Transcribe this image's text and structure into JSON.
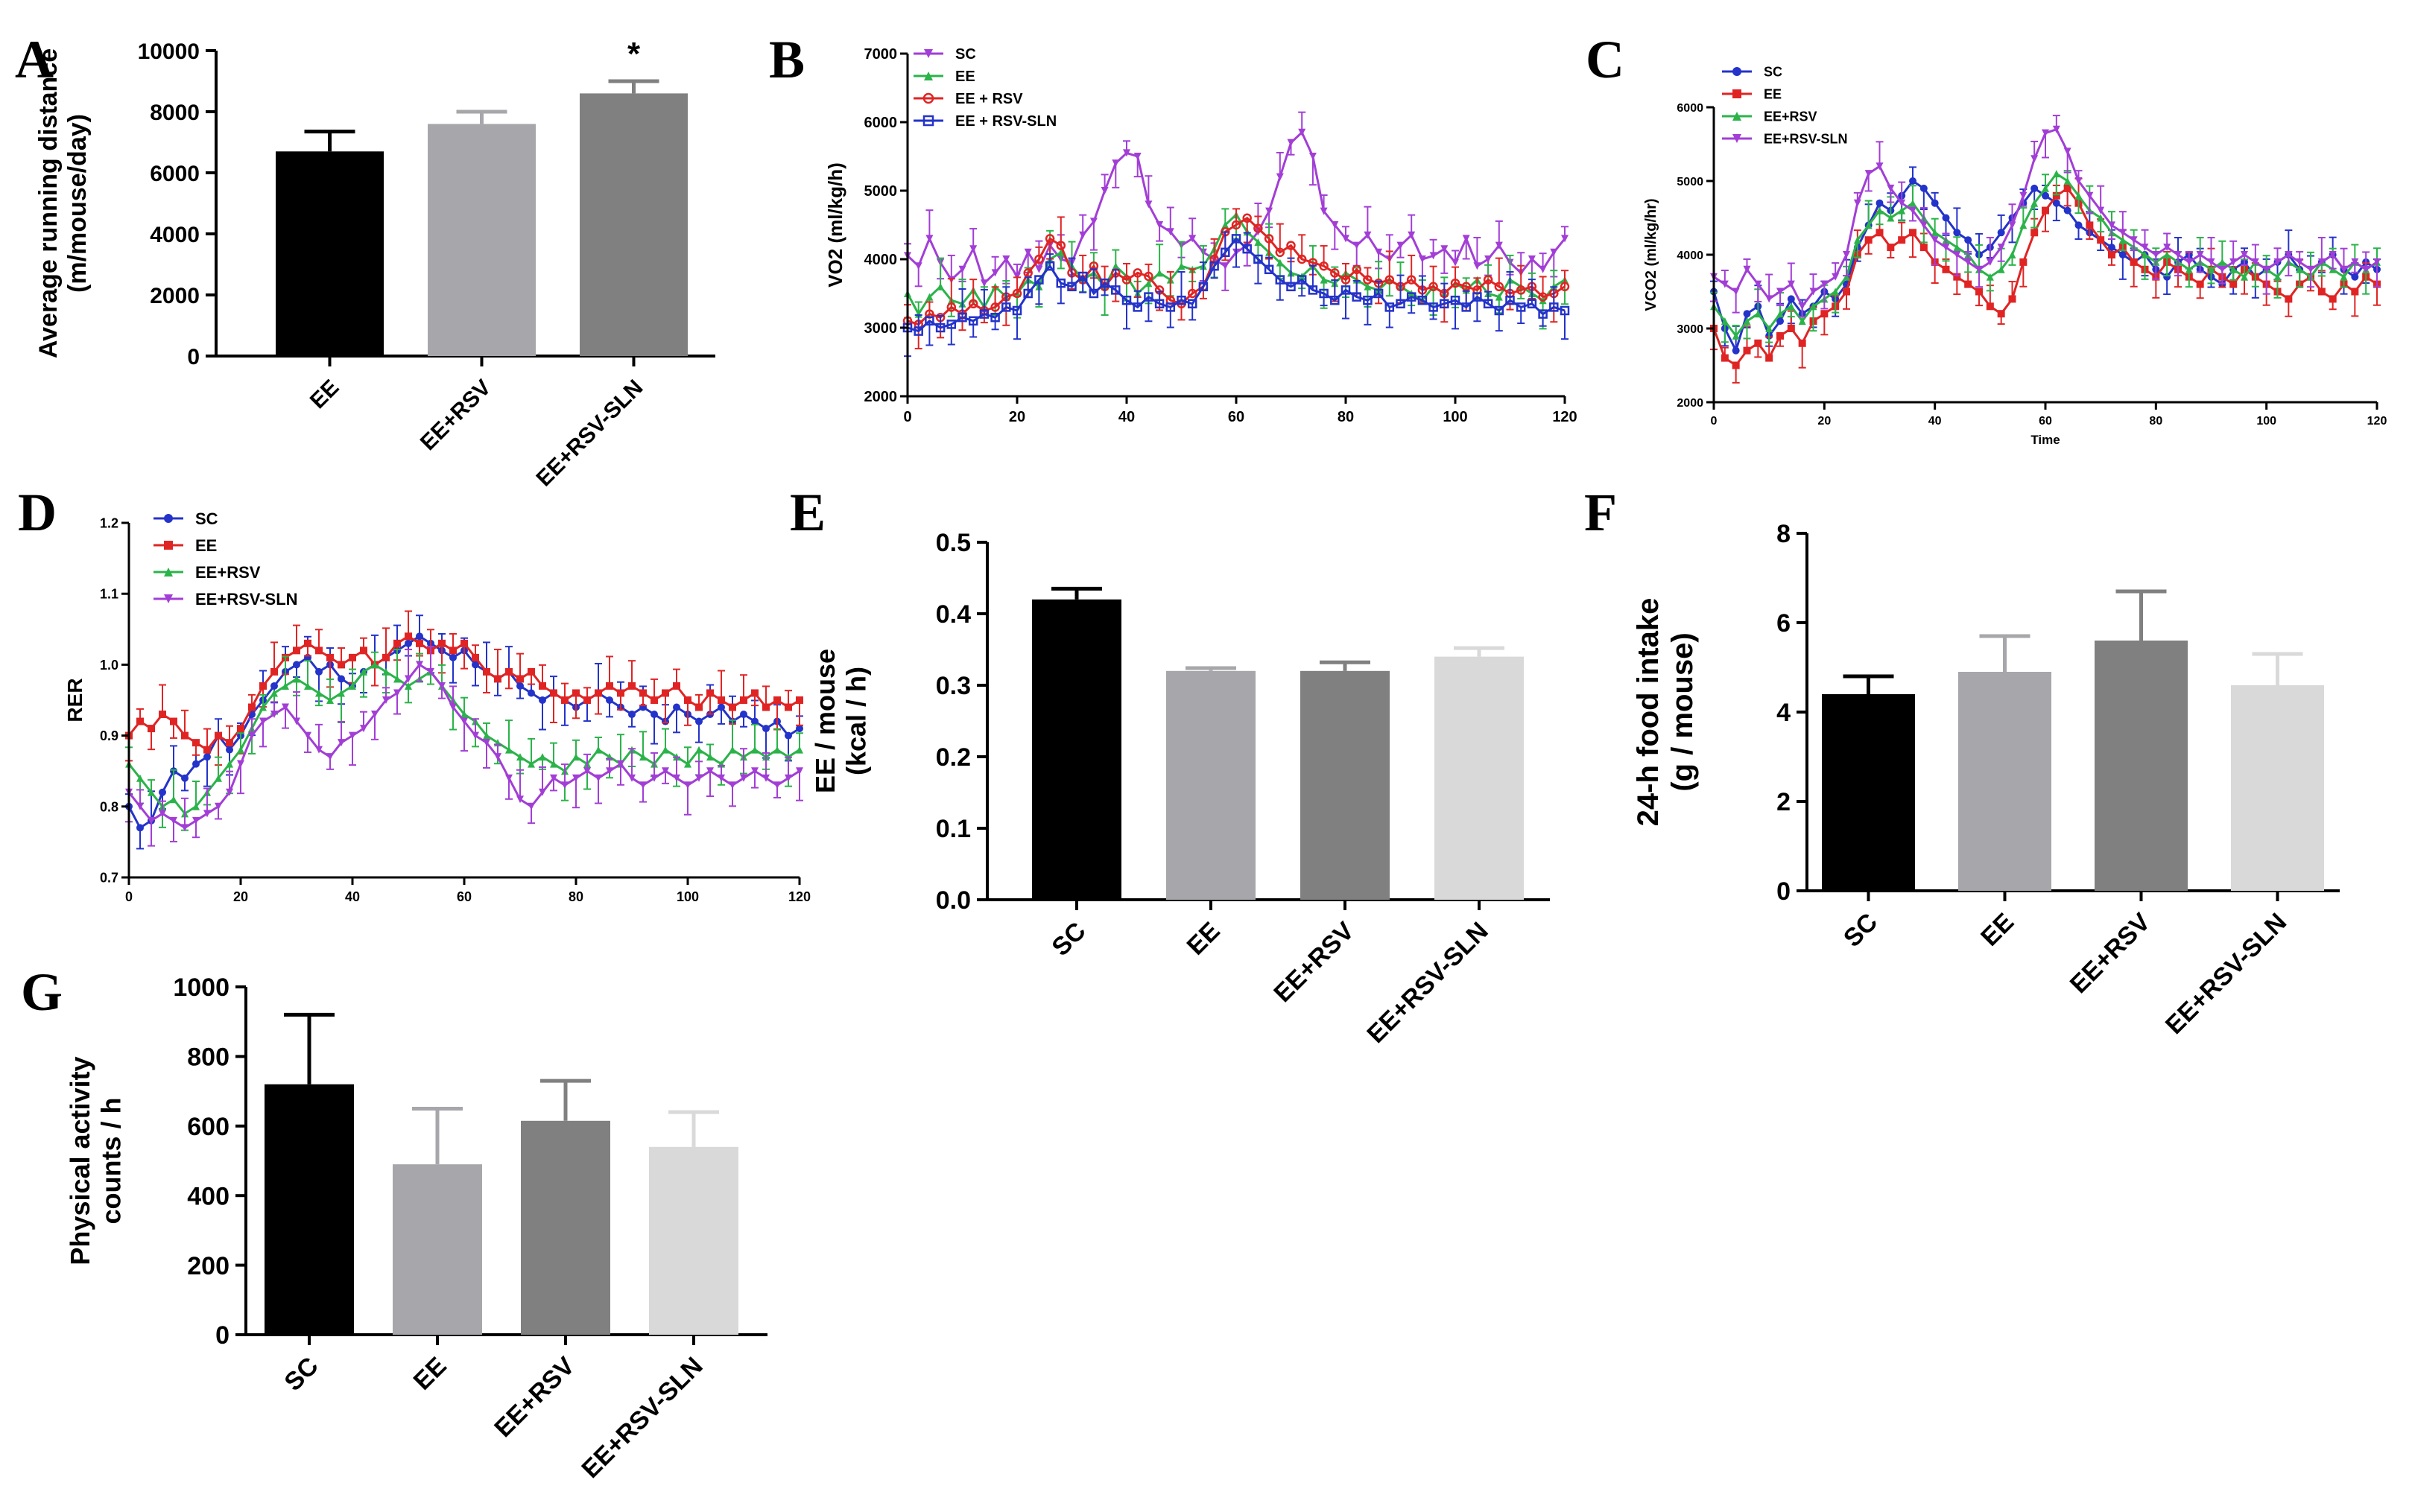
{
  "chart_data": [
    {
      "panel": "A",
      "type": "bar",
      "categories": [
        "EE",
        "EE+RSV",
        "EE+RSV-SLN"
      ],
      "values": [
        6700,
        7600,
        8600
      ],
      "errors": [
        650,
        400,
        400
      ],
      "colors": [
        "#000000",
        "#a7a7ab",
        "#808080"
      ],
      "ylabel": [
        "Average running distance",
        "(m/mouse/day)"
      ],
      "ylim": [
        0,
        10000
      ],
      "yticks": [
        "0",
        "2000",
        "4000",
        "6000",
        "8000",
        "10000"
      ],
      "significance": [
        "",
        "",
        "*"
      ]
    },
    {
      "panel": "B",
      "type": "line",
      "ylabel": "VO2 (ml/kg/h)",
      "xlim": [
        0,
        120
      ],
      "ylim": [
        2000,
        7000
      ],
      "xticks": [
        "0",
        "20",
        "40",
        "60",
        "80",
        "100",
        "120"
      ],
      "yticks": [
        "2000",
        "3000",
        "4000",
        "5000",
        "6000",
        "7000"
      ],
      "series": [
        {
          "name": "SC",
          "color": "#a23ed6",
          "marker": "triangle-down",
          "values": [
            4050,
            3900,
            4300,
            3950,
            3700,
            3850,
            4150,
            3650,
            3800,
            4000,
            3750,
            4100,
            3850,
            4200,
            4000,
            3950,
            4350,
            4550,
            5000,
            5400,
            5550,
            5500,
            4800,
            4500,
            4400,
            4200,
            4300,
            4100,
            4000,
            3900,
            4100,
            4200,
            4400,
            4700,
            5200,
            5700,
            5850,
            5500,
            4700,
            4500,
            4300,
            4200,
            4350,
            4100,
            4000,
            4200,
            4350,
            4000,
            4050,
            4150,
            3950,
            4300,
            3900,
            4000,
            4200,
            3950,
            3800,
            4000,
            3850,
            4100,
            4300
          ]
        },
        {
          "name": "EE",
          "color": "#2bb34a",
          "marker": "triangle-up",
          "values": [
            3500,
            3200,
            3450,
            3600,
            3400,
            3350,
            3550,
            3300,
            3600,
            3450,
            3500,
            3700,
            3600,
            4000,
            4100,
            3900,
            3700,
            3800,
            3600,
            3900,
            3750,
            3500,
            3650,
            3800,
            3700,
            3900,
            3850,
            3900,
            4150,
            4500,
            4650,
            4400,
            4250,
            4100,
            3950,
            3800,
            3750,
            3900,
            3700,
            3650,
            3800,
            3700,
            3600,
            3550,
            3700,
            3600,
            3500,
            3400,
            3600,
            3500,
            3650,
            3550,
            3700,
            3500,
            3450,
            3700,
            3600,
            3500,
            3400,
            3600,
            3700
          ]
        },
        {
          "name": "EE + RSV",
          "color": "#e02424",
          "marker": "circle-open",
          "values": [
            3100,
            3050,
            3200,
            3150,
            3300,
            3200,
            3350,
            3250,
            3300,
            3450,
            3500,
            3800,
            4000,
            4300,
            4200,
            3800,
            3700,
            3900,
            3600,
            3800,
            3700,
            3800,
            3750,
            3550,
            3400,
            3350,
            3500,
            3600,
            4000,
            4400,
            4500,
            4600,
            4450,
            4300,
            4100,
            4200,
            4000,
            3950,
            3900,
            3800,
            3700,
            3850,
            3700,
            3650,
            3700,
            3600,
            3700,
            3550,
            3600,
            3500,
            3650,
            3600,
            3550,
            3700,
            3600,
            3500,
            3550,
            3600,
            3450,
            3500,
            3600
          ]
        },
        {
          "name": "EE + RSV-SLN",
          "color": "#2433c9",
          "marker": "square-open",
          "values": [
            3000,
            2950,
            3100,
            3000,
            3050,
            3150,
            3100,
            3200,
            3150,
            3300,
            3250,
            3500,
            3700,
            3900,
            3650,
            3600,
            3750,
            3500,
            3650,
            3550,
            3400,
            3300,
            3450,
            3350,
            3300,
            3400,
            3350,
            3600,
            3900,
            4100,
            4300,
            4150,
            4000,
            3850,
            3700,
            3600,
            3700,
            3550,
            3500,
            3400,
            3550,
            3450,
            3400,
            3500,
            3300,
            3350,
            3450,
            3400,
            3300,
            3350,
            3400,
            3300,
            3450,
            3350,
            3250,
            3400,
            3300,
            3350,
            3200,
            3300,
            3250
          ]
        }
      ]
    },
    {
      "panel": "C",
      "type": "line",
      "xlabel": "Time",
      "ylabel": "VCO2 (ml/kg/hr)",
      "xlim": [
        0,
        120
      ],
      "ylim": [
        2000,
        6000
      ],
      "xticks": [
        "0",
        "20",
        "40",
        "60",
        "80",
        "100",
        "120"
      ],
      "yticks": [
        "2000",
        "3000",
        "4000",
        "5000",
        "6000"
      ],
      "series": [
        {
          "name": "SC",
          "color": "#2433c9",
          "marker": "circle",
          "values": [
            3500,
            3000,
            2700,
            3200,
            3300,
            2900,
            3100,
            3400,
            3200,
            3300,
            3500,
            3400,
            3600,
            4100,
            4400,
            4700,
            4600,
            4800,
            5000,
            4900,
            4700,
            4500,
            4300,
            4200,
            4000,
            4100,
            4300,
            4500,
            4700,
            4900,
            4800,
            4700,
            4600,
            4400,
            4300,
            4200,
            4100,
            4000,
            3900,
            4000,
            3800,
            3700,
            3900,
            4000,
            3800,
            3700,
            3600,
            3800,
            3900,
            3700,
            3800,
            3900,
            4000,
            3800,
            3700,
            3900,
            4000,
            3800,
            3700,
            3900,
            3800
          ]
        },
        {
          "name": "EE",
          "color": "#e02424",
          "marker": "square",
          "values": [
            3000,
            2600,
            2500,
            2700,
            2800,
            2600,
            2900,
            3000,
            2800,
            3100,
            3200,
            3300,
            3500,
            4000,
            4200,
            4300,
            4100,
            4200,
            4300,
            4100,
            3900,
            3800,
            3700,
            3600,
            3500,
            3300,
            3200,
            3400,
            3900,
            4300,
            4600,
            4800,
            4900,
            4700,
            4400,
            4200,
            4000,
            4100,
            3900,
            3800,
            3700,
            3900,
            3800,
            3700,
            3600,
            3800,
            3700,
            3600,
            3800,
            3700,
            3600,
            3500,
            3400,
            3600,
            3700,
            3500,
            3400,
            3600,
            3500,
            3700,
            3600
          ]
        },
        {
          "name": "EE+RSV",
          "color": "#2bb34a",
          "marker": "triangle-up",
          "values": [
            3300,
            3100,
            2900,
            3100,
            3200,
            3000,
            3200,
            3300,
            3100,
            3300,
            3400,
            3500,
            3700,
            4200,
            4400,
            4600,
            4500,
            4600,
            4700,
            4500,
            4300,
            4200,
            4100,
            4000,
            3800,
            3700,
            3800,
            4000,
            4400,
            4700,
            4900,
            5100,
            5000,
            4800,
            4600,
            4500,
            4300,
            4200,
            4100,
            4000,
            3900,
            4000,
            3900,
            3800,
            3900,
            3800,
            3900,
            3800,
            3700,
            3900,
            3800,
            3700,
            3900,
            3800,
            3700,
            3900,
            3800,
            3700,
            3900,
            3800,
            3900
          ]
        },
        {
          "name": "EE+RSV-SLN",
          "color": "#a23ed6",
          "marker": "triangle-down",
          "values": [
            3700,
            3600,
            3500,
            3800,
            3600,
            3400,
            3500,
            3600,
            3300,
            3500,
            3600,
            3700,
            4000,
            4700,
            5100,
            5200,
            4900,
            4700,
            4600,
            4400,
            4200,
            4100,
            4000,
            3900,
            3800,
            3900,
            4100,
            4400,
            4800,
            5300,
            5650,
            5700,
            5400,
            5000,
            4800,
            4600,
            4400,
            4300,
            4200,
            4100,
            4000,
            4100,
            4000,
            3900,
            4000,
            3900,
            3800,
            3900,
            4000,
            3900,
            3800,
            3900,
            4000,
            3900,
            3800,
            3900,
            4000,
            3800,
            3900,
            3800,
            3900
          ]
        }
      ]
    },
    {
      "panel": "D",
      "type": "line",
      "ylabel": "RER",
      "xlim": [
        0,
        120
      ],
      "ylim": [
        0.7,
        1.2
      ],
      "xticks": [
        "0",
        "20",
        "40",
        "60",
        "80",
        "100",
        "120"
      ],
      "yticks": [
        "0.7",
        "0.8",
        "0.9",
        "1.0",
        "1.1",
        "1.2"
      ],
      "series": [
        {
          "name": "SC",
          "color": "#2433c9",
          "marker": "circle",
          "values": [
            0.8,
            0.77,
            0.78,
            0.82,
            0.85,
            0.84,
            0.86,
            0.87,
            0.9,
            0.88,
            0.9,
            0.93,
            0.95,
            0.97,
            0.99,
            1.0,
            1.01,
            0.99,
            1.0,
            0.98,
            0.97,
            0.99,
            1.0,
            1.01,
            1.02,
            1.03,
            1.04,
            1.03,
            1.02,
            1.01,
            1.02,
            1.0,
            0.99,
            0.98,
            0.99,
            0.97,
            0.96,
            0.95,
            0.96,
            0.95,
            0.94,
            0.95,
            0.96,
            0.95,
            0.94,
            0.93,
            0.94,
            0.93,
            0.92,
            0.94,
            0.93,
            0.92,
            0.93,
            0.94,
            0.92,
            0.93,
            0.92,
            0.91,
            0.92,
            0.9,
            0.91
          ]
        },
        {
          "name": "EE",
          "color": "#e02424",
          "marker": "square",
          "values": [
            0.9,
            0.92,
            0.91,
            0.93,
            0.92,
            0.9,
            0.89,
            0.88,
            0.9,
            0.89,
            0.91,
            0.94,
            0.97,
            0.99,
            1.01,
            1.02,
            1.03,
            1.02,
            1.01,
            1.0,
            1.01,
            1.02,
            1.0,
            1.01,
            1.03,
            1.04,
            1.03,
            1.02,
            1.03,
            1.02,
            1.03,
            1.01,
            0.99,
            0.98,
            0.99,
            0.98,
            0.99,
            0.97,
            0.96,
            0.95,
            0.96,
            0.95,
            0.96,
            0.97,
            0.96,
            0.97,
            0.96,
            0.95,
            0.96,
            0.97,
            0.95,
            0.94,
            0.96,
            0.95,
            0.94,
            0.95,
            0.96,
            0.94,
            0.95,
            0.94,
            0.95
          ]
        },
        {
          "name": "EE+RSV",
          "color": "#2bb34a",
          "marker": "triangle-up",
          "values": [
            0.86,
            0.84,
            0.82,
            0.8,
            0.81,
            0.79,
            0.8,
            0.82,
            0.84,
            0.86,
            0.88,
            0.91,
            0.94,
            0.96,
            0.97,
            0.98,
            0.97,
            0.96,
            0.95,
            0.96,
            0.97,
            0.99,
            1.0,
            0.99,
            0.98,
            0.97,
            0.98,
            0.99,
            0.97,
            0.95,
            0.93,
            0.92,
            0.9,
            0.89,
            0.88,
            0.87,
            0.86,
            0.87,
            0.86,
            0.85,
            0.87,
            0.86,
            0.88,
            0.87,
            0.86,
            0.88,
            0.87,
            0.86,
            0.88,
            0.87,
            0.86,
            0.88,
            0.87,
            0.86,
            0.88,
            0.87,
            0.88,
            0.87,
            0.88,
            0.87,
            0.88
          ]
        },
        {
          "name": "EE+RSV-SLN",
          "color": "#a23ed6",
          "marker": "triangle-down",
          "values": [
            0.82,
            0.8,
            0.78,
            0.79,
            0.78,
            0.77,
            0.78,
            0.79,
            0.8,
            0.82,
            0.86,
            0.9,
            0.92,
            0.93,
            0.94,
            0.92,
            0.9,
            0.88,
            0.87,
            0.89,
            0.9,
            0.91,
            0.93,
            0.95,
            0.96,
            0.98,
            1.0,
            0.99,
            0.97,
            0.94,
            0.92,
            0.9,
            0.89,
            0.87,
            0.84,
            0.81,
            0.8,
            0.82,
            0.84,
            0.83,
            0.84,
            0.85,
            0.84,
            0.85,
            0.86,
            0.84,
            0.83,
            0.84,
            0.85,
            0.84,
            0.83,
            0.84,
            0.85,
            0.84,
            0.83,
            0.84,
            0.85,
            0.84,
            0.83,
            0.84,
            0.85
          ]
        }
      ]
    },
    {
      "panel": "E",
      "type": "bar",
      "categories": [
        "SC",
        "EE",
        "EE+RSV",
        "EE+RSV-SLN"
      ],
      "values": [
        0.42,
        0.32,
        0.32,
        0.34
      ],
      "errors": [
        0.015,
        0.004,
        0.012,
        0.012
      ],
      "colors": [
        "#000000",
        "#a7a7ab",
        "#808080",
        "#d9d9d9"
      ],
      "ylabel": [
        "EE / mouse",
        "(kcal / h)"
      ],
      "ylim": [
        0,
        0.5
      ],
      "yticks": [
        "0.0",
        "0.1",
        "0.2",
        "0.3",
        "0.4",
        "0.5"
      ]
    },
    {
      "panel": "F",
      "type": "bar",
      "categories": [
        "SC",
        "EE",
        "EE+RSV",
        "EE+RSV-SLN"
      ],
      "values": [
        4.4,
        4.9,
        5.6,
        4.6
      ],
      "errors": [
        0.4,
        0.8,
        1.1,
        0.7
      ],
      "colors": [
        "#000000",
        "#a7a7ab",
        "#808080",
        "#d9d9d9"
      ],
      "ylabel": [
        "24-h food intake",
        "(g / mouse)"
      ],
      "ylim": [
        0,
        8
      ],
      "yticks": [
        "0",
        "2",
        "4",
        "6",
        "8"
      ]
    },
    {
      "panel": "G",
      "type": "bar",
      "categories": [
        "SC",
        "EE",
        "EE+RSV",
        "EE+RSV-SLN"
      ],
      "values": [
        720,
        490,
        615,
        540
      ],
      "errors": [
        200,
        160,
        115,
        100
      ],
      "colors": [
        "#000000",
        "#a7a7ab",
        "#808080",
        "#d9d9d9"
      ],
      "ylabel": [
        "Physical activity",
        "counts / h"
      ],
      "ylim": [
        0,
        1000
      ],
      "yticks": [
        "0",
        "200",
        "400",
        "600",
        "800",
        "1000"
      ]
    }
  ]
}
